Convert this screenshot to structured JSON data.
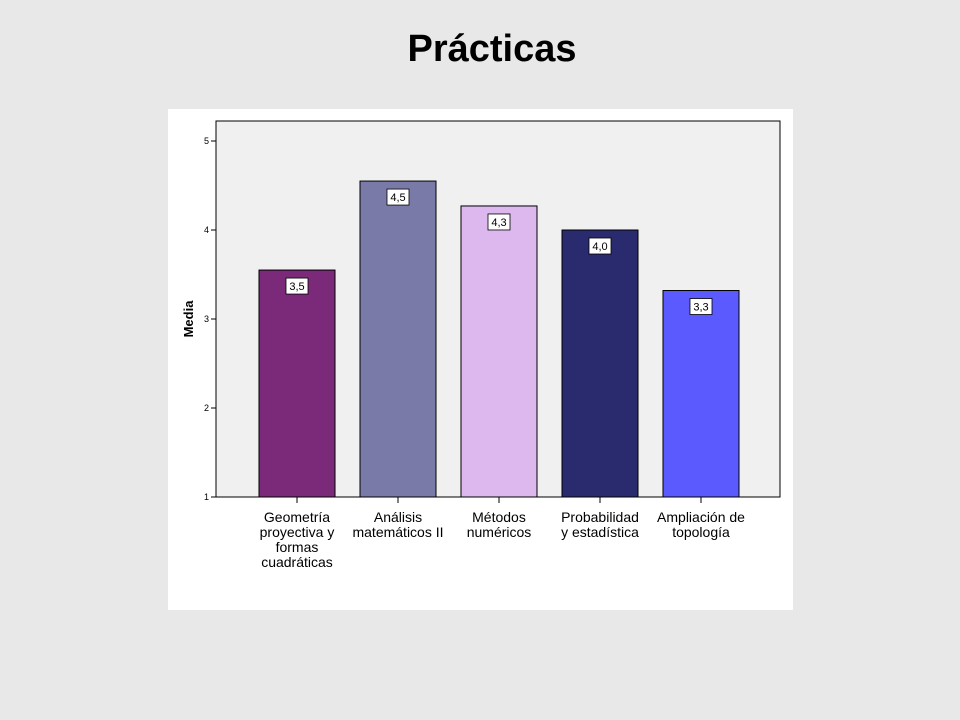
{
  "page": {
    "title": "Prácticas"
  },
  "chart_data": {
    "type": "bar",
    "title": "",
    "xlabel": "",
    "ylabel": "Media",
    "ylim": [
      1,
      5
    ],
    "yticks": [
      1,
      2,
      3,
      4,
      5
    ],
    "grid": false,
    "legend": "none",
    "plot_background": "#f0f0f0",
    "categories": [
      [
        "Geometría",
        "proyectiva y",
        "formas",
        "cuadráticas"
      ],
      [
        "Análisis",
        "matemáticos II"
      ],
      [
        "Métodos",
        "numéricos"
      ],
      [
        "Probabilidad",
        "y estadística"
      ],
      [
        "Ampliación de",
        "topología"
      ]
    ],
    "values": [
      3.55,
      4.55,
      4.27,
      4.0,
      3.32
    ],
    "data_labels": [
      "3,5",
      "4,5",
      "4,3",
      "4,0",
      "3,3"
    ],
    "colors": [
      "#7b2a7a",
      "#7a7aa8",
      "#dcb8ee",
      "#2a2a6e",
      "#5a5afe"
    ]
  }
}
